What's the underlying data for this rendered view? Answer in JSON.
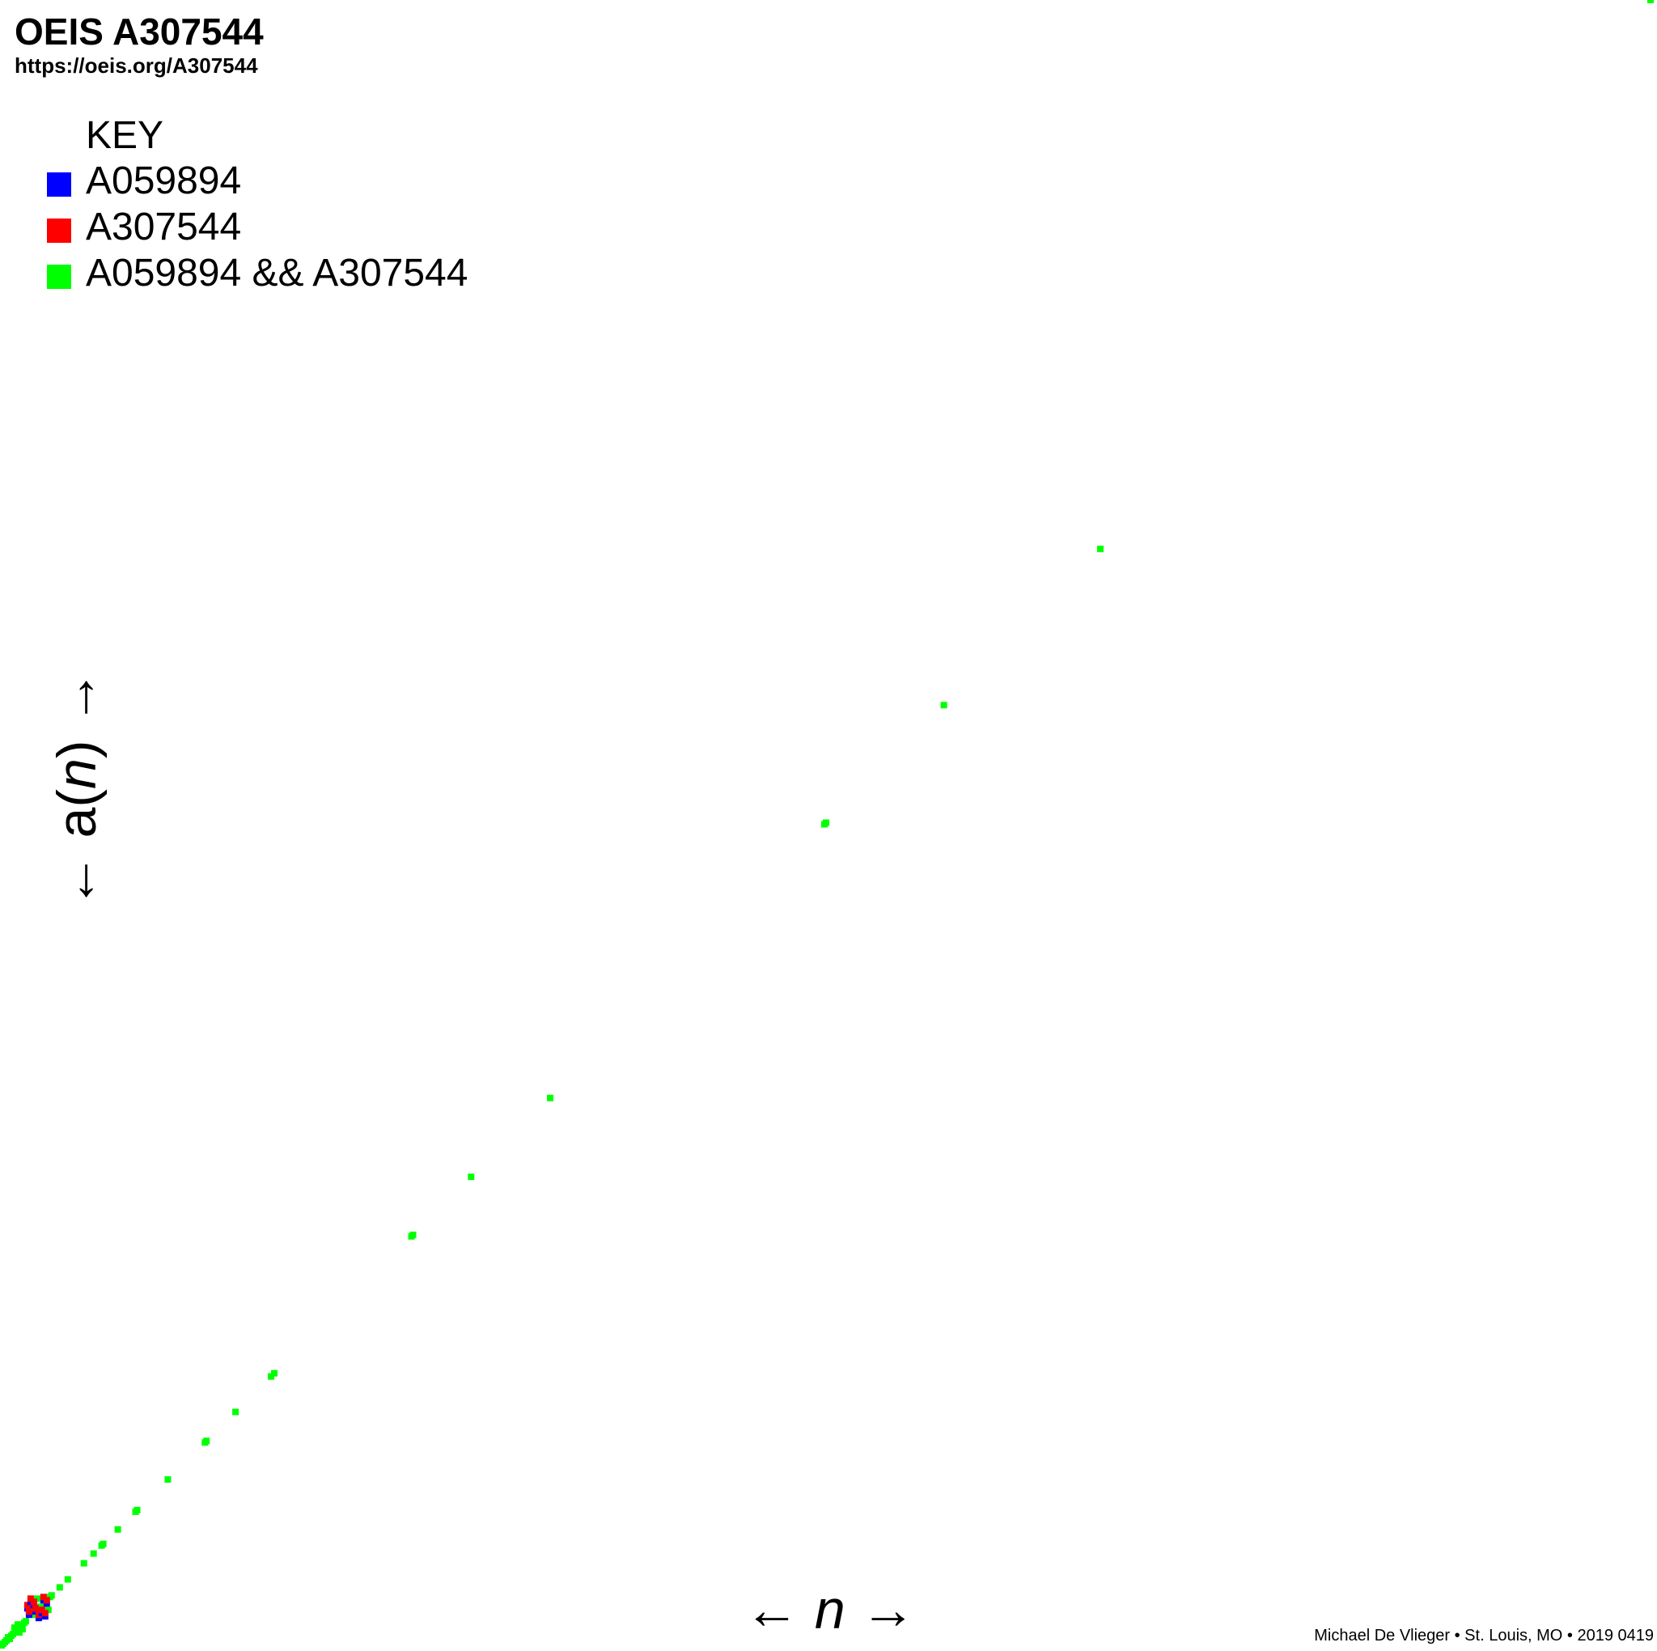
{
  "header": {
    "title": "OEIS A307544",
    "url": "https://oeis.org/A307544"
  },
  "key": {
    "heading": "KEY",
    "entries": [
      {
        "label": "A059894",
        "color": "#0000ff"
      },
      {
        "label": "A307544",
        "color": "#ff0000"
      },
      {
        "label": "A059894 && A307544",
        "color": "#00ff00"
      }
    ]
  },
  "axes": {
    "xlabel_arrow_left": "← ",
    "xlabel_var": "n",
    "xlabel_arrow_right": " →",
    "ylabel_pre": "← a(",
    "ylabel_var": "n",
    "ylabel_post": ") →"
  },
  "credit": "Michael De Vlieger • St. Louis, MO • 2019 0419",
  "chart_data": {
    "type": "scatter",
    "description_of_values": "Scatter of n vs a(n) for n = 1..1023, block structure by powers of 2",
    "series": [
      {
        "name": "A059894",
        "color": "#0000ff"
      },
      {
        "name": "A307544",
        "color": "#ff0000"
      },
      {
        "name": "A059894 && A307544",
        "color": "#00ff00"
      }
    ],
    "points": {
      "both": [
        [
          1,
          1
        ],
        [
          2,
          2
        ],
        [
          3,
          3
        ],
        [
          4,
          4
        ],
        [
          5,
          6
        ],
        [
          6,
          5
        ],
        [
          7,
          7
        ],
        [
          8,
          8
        ],
        [
          9,
          12
        ],
        [
          10,
          10
        ],
        [
          11,
          14
        ],
        [
          12,
          9
        ],
        [
          13,
          13
        ],
        [
          14,
          11
        ],
        [
          15,
          15
        ],
        [
          16,
          16
        ],
        [
          20,
          20
        ],
        [
          23,
          30
        ],
        [
          25,
          25
        ],
        [
          30,
          23
        ],
        [
          31,
          31
        ],
        [
          32,
          32
        ],
        [
          37,
          37
        ],
        [
          42,
          42
        ],
        [
          52,
          52
        ],
        [
          58,
          58
        ],
        [
          63,
          63
        ],
        [
          64,
          64
        ],
        [
          73,
          73
        ],
        [
          84,
          84
        ],
        [
          85,
          85
        ],
        [
          104,
          104
        ],
        [
          127,
          127
        ],
        [
          128,
          128
        ],
        [
          146,
          146
        ],
        [
          168,
          168
        ],
        [
          170,
          170
        ],
        [
          255,
          255
        ],
        [
          256,
          256
        ],
        [
          292,
          292
        ],
        [
          341,
          341
        ],
        [
          511,
          511
        ],
        [
          512,
          512
        ],
        [
          585,
          585
        ],
        [
          682,
          682
        ],
        [
          1023,
          1023
        ]
      ],
      "blue_red_pairs": [
        [
          17,
          24
        ],
        [
          18,
          20
        ],
        [
          19,
          28
        ],
        [
          21,
          26
        ],
        [
          22,
          22
        ],
        [
          24,
          18
        ],
        [
          26,
          21
        ],
        [
          27,
          29
        ],
        [
          28,
          19
        ],
        [
          29,
          27
        ]
      ]
    },
    "xlim": [
      1,
      1023
    ],
    "ylim": [
      1,
      1023
    ]
  }
}
